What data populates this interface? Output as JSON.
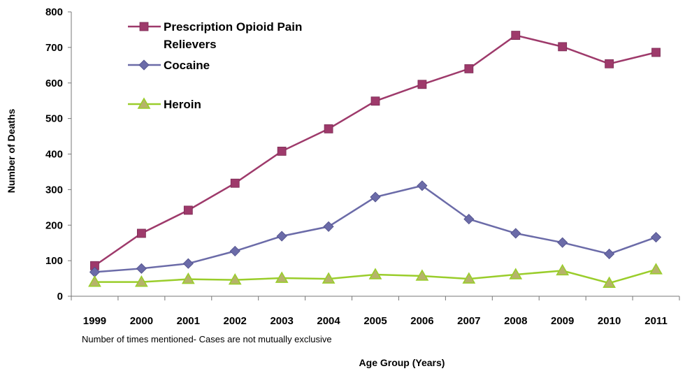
{
  "chart_data": {
    "type": "line",
    "title": "",
    "xlabel": "Age Group (Years)",
    "ylabel": "Number of Deaths",
    "note": "Number of times mentioned- Cases are not mutually exclusive",
    "ylim": [
      0,
      800
    ],
    "yticks": [
      0,
      100,
      200,
      300,
      400,
      500,
      600,
      700,
      800
    ],
    "categories": [
      "1999",
      "2000",
      "2001",
      "2002",
      "2003",
      "2004",
      "2005",
      "2006",
      "2007",
      "2008",
      "2009",
      "2010",
      "2011"
    ],
    "grid": false,
    "legend_position": "top-left",
    "series": [
      {
        "name": "Prescription Opioid Pain Relievers",
        "legend_lines": [
          "Prescription Opioid Pain",
          "Relievers"
        ],
        "color": "#9E3A6B",
        "marker": "square",
        "values": [
          86,
          177,
          242,
          318,
          408,
          471,
          549,
          596,
          640,
          734,
          702,
          654,
          686
        ]
      },
      {
        "name": "Cocaine",
        "legend_lines": [
          "Cocaine"
        ],
        "color": "#6B6BA8",
        "marker": "diamond",
        "values": [
          68,
          78,
          92,
          127,
          169,
          196,
          279,
          311,
          217,
          177,
          151,
          119,
          166
        ]
      },
      {
        "name": "Heroin",
        "legend_lines": [
          "Heroin"
        ],
        "color": "#9ACD2B",
        "marker": "triangle",
        "values": [
          40,
          40,
          48,
          46,
          51,
          49,
          61,
          57,
          49,
          61,
          72,
          37,
          75
        ]
      }
    ]
  }
}
